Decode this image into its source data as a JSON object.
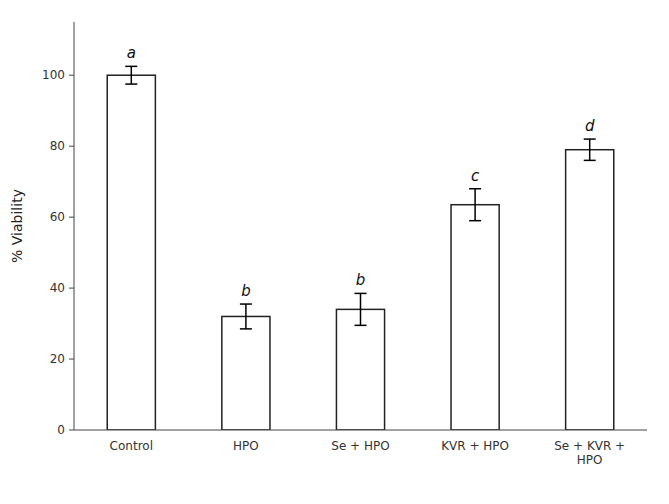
{
  "chart_data": {
    "type": "bar",
    "categories": [
      "Control",
      "HPO",
      "Se + HPO",
      "KVR + HPO",
      "Se + KVR +\nHPO"
    ],
    "values": [
      100,
      32,
      34,
      63.5,
      79
    ],
    "errors": [
      2.5,
      3.5,
      4.5,
      4.5,
      3.0
    ],
    "letters": [
      "a",
      "b",
      "b",
      "c",
      "d"
    ],
    "ylabel": "% Viability",
    "ylim": [
      0,
      115
    ],
    "yticks": [
      0,
      20,
      40,
      60,
      80,
      100
    ],
    "color": "#ffffff",
    "grid": false
  }
}
